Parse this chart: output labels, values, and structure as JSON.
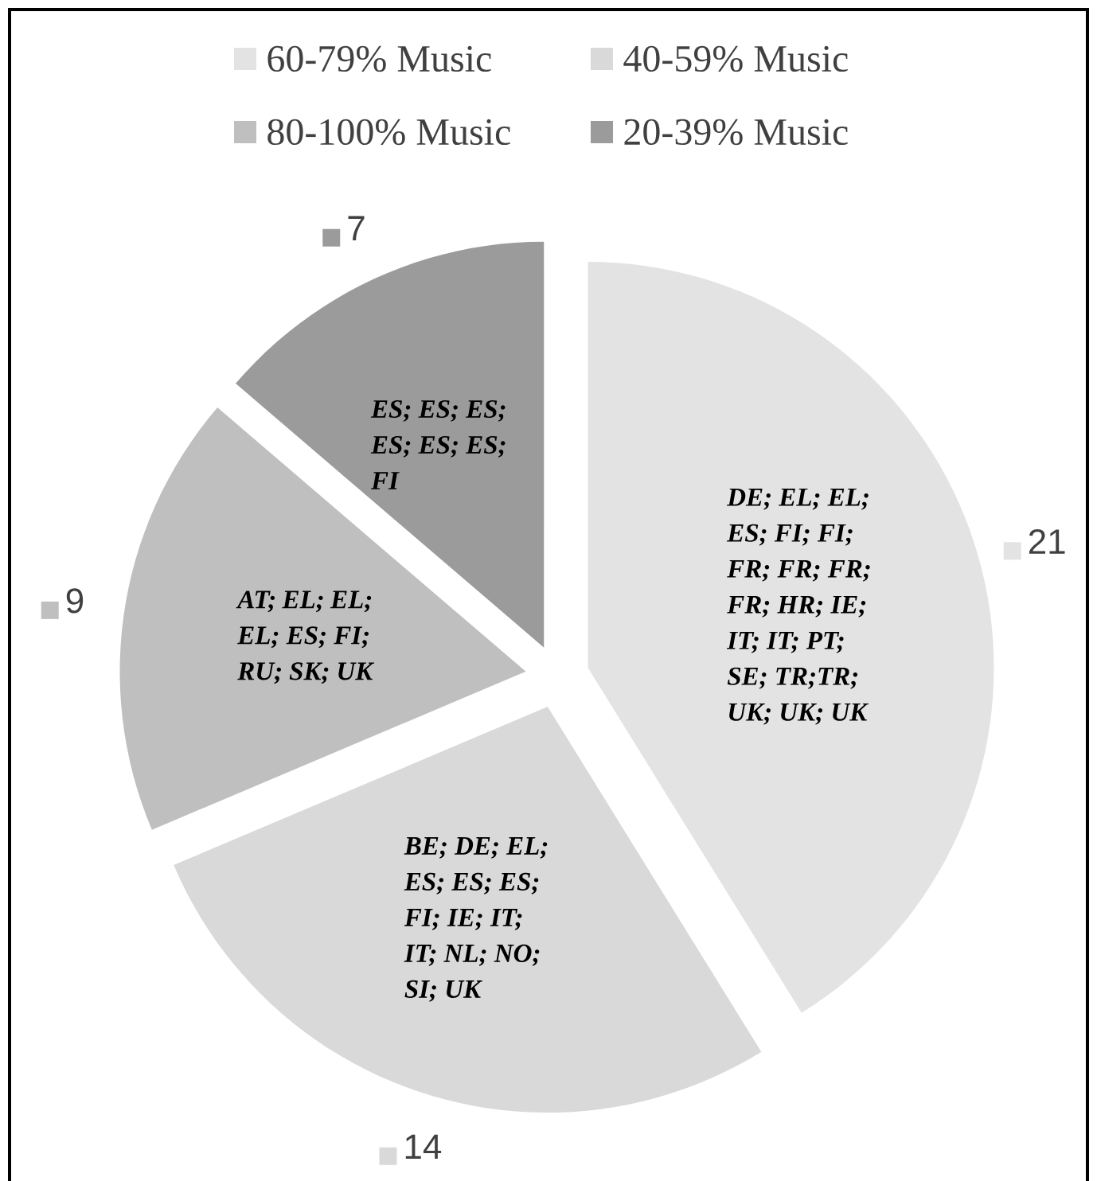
{
  "chart_data": {
    "type": "pie",
    "categories": [
      "60-79% Music",
      "40-59% Music",
      "80-100% Music",
      "20-39% Music"
    ],
    "values": [
      21,
      14,
      9,
      7
    ],
    "colors": [
      "#e3e3e3",
      "#d9d9d9",
      "#bfbfbf",
      "#9b9b9b"
    ],
    "data_labels": true,
    "legend": "top",
    "annotations": [
      "DE; EL; EL; ES; FI; FI; FR; FR; FR; FR; HR; IE; IT; IT; PT; SE; TR;TR; UK; UK; UK",
      "BE; DE; EL; ES; ES; ES; FI; IE; IT; IT; NL; NO; SI; UK",
      "AT; EL; EL; EL; ES; FI; RU; SK; UK",
      "ES; ES; ES; ES; ES; ES; FI"
    ]
  }
}
